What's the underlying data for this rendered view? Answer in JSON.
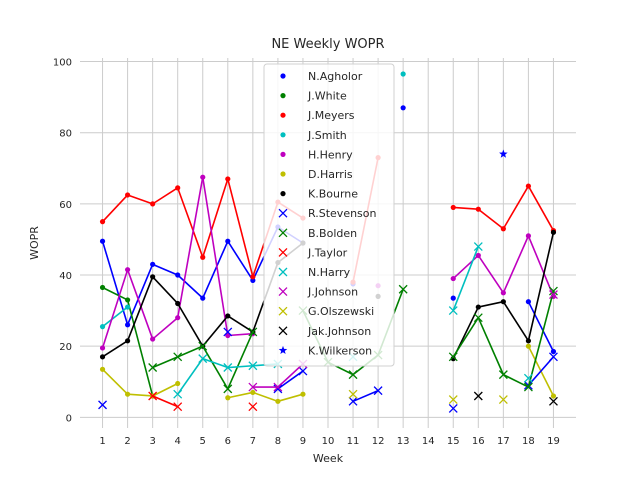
{
  "chart_data": {
    "type": "line",
    "title": "NE Weekly WOPR",
    "xlabel": "Week",
    "ylabel": "WOPR",
    "x": [
      1,
      2,
      3,
      4,
      5,
      6,
      7,
      8,
      9,
      10,
      11,
      12,
      13,
      14,
      15,
      16,
      17,
      18,
      19
    ],
    "xlim": [
      0.1,
      19.9
    ],
    "ylim": [
      -3,
      101
    ],
    "yticks": [
      0,
      20,
      40,
      60,
      80,
      100
    ],
    "grid": true,
    "legend": "upper-center",
    "series": [
      {
        "name": "N.Agholor",
        "color": "#0000ff",
        "marker": "dot",
        "values": [
          49.5,
          26.0,
          43.0,
          40.0,
          33.5,
          49.5,
          38.5,
          53.5,
          49.0,
          null,
          37.5,
          null,
          87.0,
          null,
          33.5,
          null,
          null,
          32.5,
          18.5
        ]
      },
      {
        "name": "J.White",
        "color": "#008000",
        "marker": "dot",
        "values": [
          36.5,
          33.0,
          6.0,
          null,
          null,
          null,
          null,
          null,
          null,
          null,
          null,
          null,
          null,
          null,
          null,
          null,
          null,
          null,
          null
        ]
      },
      {
        "name": "J.Meyers",
        "color": "#ff0000",
        "marker": "dot",
        "values": [
          55.0,
          62.5,
          60.0,
          64.5,
          45.0,
          67.0,
          39.5,
          60.5,
          56.0,
          null,
          38.0,
          73.0,
          null,
          null,
          59.0,
          58.5,
          53.0,
          65.0,
          52.5
        ]
      },
      {
        "name": "J.Smith",
        "color": "#00bfbf",
        "marker": "dot",
        "values": [
          25.5,
          31.0,
          null,
          null,
          null,
          null,
          null,
          null,
          null,
          null,
          null,
          null,
          96.5,
          null,
          null,
          null,
          null,
          null,
          null
        ]
      },
      {
        "name": "H.Henry",
        "color": "#bf00bf",
        "marker": "dot",
        "values": [
          19.5,
          41.5,
          22.0,
          28.0,
          67.5,
          23.0,
          23.5,
          null,
          null,
          null,
          null,
          37.0,
          null,
          null,
          39.0,
          45.5,
          35.0,
          51.0,
          34.0
        ]
      },
      {
        "name": "D.Harris",
        "color": "#bfbf00",
        "marker": "dot",
        "values": [
          13.5,
          6.5,
          6.0,
          9.5,
          null,
          5.5,
          7.0,
          4.5,
          6.5,
          null,
          null,
          null,
          null,
          null,
          null,
          null,
          null,
          20.0,
          6.0
        ]
      },
      {
        "name": "K.Bourne",
        "color": "#000000",
        "marker": "dot",
        "values": [
          17.0,
          21.5,
          39.5,
          32.0,
          20.0,
          28.5,
          24.0,
          43.5,
          49.0,
          null,
          null,
          34.0,
          null,
          null,
          16.5,
          31.0,
          32.5,
          21.5,
          52.0
        ]
      },
      {
        "name": "R.Stevenson",
        "color": "#0000ff",
        "marker": "x",
        "values": [
          3.5,
          null,
          null,
          null,
          null,
          24.0,
          null,
          8.0,
          13.0,
          null,
          4.5,
          7.5,
          null,
          null,
          2.5,
          null,
          null,
          9.0,
          17.0
        ]
      },
      {
        "name": "B.Bolden",
        "color": "#008000",
        "marker": "x",
        "values": [
          null,
          null,
          14.0,
          17.0,
          20.0,
          8.0,
          24.0,
          null,
          30.0,
          15.5,
          12.0,
          17.5,
          36.0,
          null,
          17.0,
          28.0,
          12.0,
          8.5,
          35.5
        ]
      },
      {
        "name": "J.Taylor",
        "color": "#ff0000",
        "marker": "x",
        "values": [
          null,
          null,
          6.0,
          3.0,
          null,
          null,
          3.0,
          null,
          null,
          null,
          null,
          null,
          null,
          null,
          null,
          null,
          null,
          null,
          null
        ]
      },
      {
        "name": "N.Harry",
        "color": "#00bfbf",
        "marker": "x",
        "values": [
          null,
          null,
          null,
          6.5,
          16.5,
          14.0,
          14.5,
          15.0,
          null,
          null,
          17.0,
          null,
          null,
          null,
          30.0,
          48.0,
          null,
          11.0,
          null
        ]
      },
      {
        "name": "J.Johnson",
        "color": "#bf00bf",
        "marker": "x",
        "values": [
          null,
          null,
          null,
          null,
          null,
          null,
          8.5,
          8.5,
          15.0,
          null,
          null,
          null,
          null,
          null,
          null,
          null,
          null,
          null,
          34.5
        ]
      },
      {
        "name": "G.Olszewski",
        "color": "#bfbf00",
        "marker": "x",
        "values": [
          null,
          null,
          null,
          null,
          null,
          null,
          null,
          null,
          null,
          null,
          6.5,
          null,
          null,
          null,
          5.0,
          null,
          5.0,
          null,
          null
        ]
      },
      {
        "name": "Jak.Johnson",
        "color": "#000000",
        "marker": "x",
        "values": [
          null,
          null,
          null,
          null,
          null,
          null,
          null,
          null,
          null,
          null,
          null,
          null,
          null,
          null,
          null,
          6.0,
          null,
          null,
          4.5
        ]
      },
      {
        "name": "K.Wilkerson",
        "color": "#0000ff",
        "marker": "star",
        "values": [
          null,
          null,
          null,
          null,
          null,
          null,
          null,
          null,
          null,
          null,
          null,
          null,
          null,
          null,
          null,
          null,
          74.0,
          null,
          null
        ]
      }
    ]
  }
}
